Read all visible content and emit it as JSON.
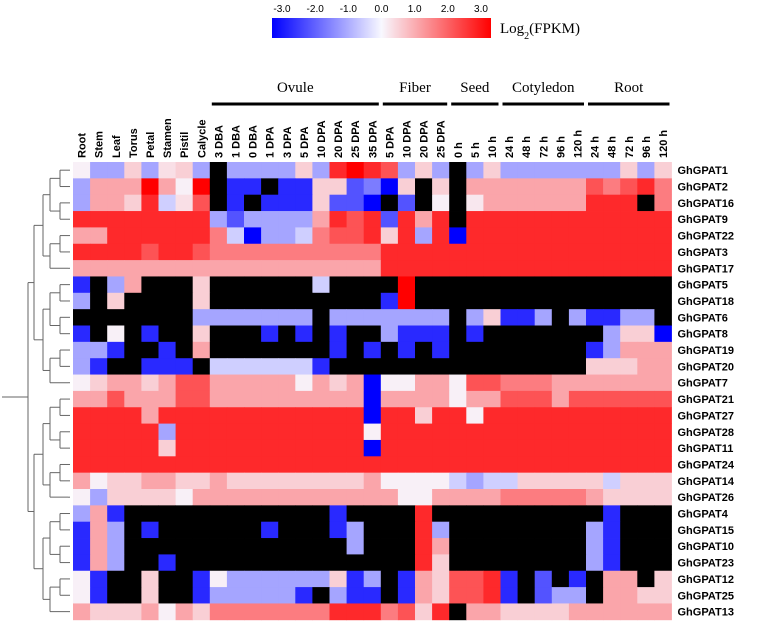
{
  "chart_data": {
    "type": "heatmap",
    "legend": {
      "ticks": [
        "-3.0",
        "-2.0",
        "-1.0",
        "0.0",
        "1.0",
        "2.0",
        "3.0"
      ],
      "title_main": "Log",
      "title_sub": "2",
      "title_rest": "(FPKM)",
      "range": [
        -3,
        3
      ]
    },
    "colors": {
      "neg": "#0000ff",
      "zero": "#f8f8ff",
      "pos": "#ff0000",
      "missing": "#000000"
    },
    "groups": [
      {
        "label": "Ovule",
        "start": 9,
        "end": 18
      },
      {
        "label": "Fiber",
        "start": 19,
        "end": 22
      },
      {
        "label": "Seed",
        "start": 23,
        "end": 25
      },
      {
        "label": "Cotyledon",
        "start": 26,
        "end": 30
      },
      {
        "label": "Root",
        "start": 31,
        "end": 35
      }
    ],
    "columns": [
      "Root",
      "Stem",
      "Leaf",
      "Torus",
      "Petal",
      "Stamen",
      "Pistil",
      "Calycle",
      "3 DBA",
      "1 DBA",
      "0 DBA",
      "1 DPA",
      "3 DPA",
      "5 DPA",
      "10 DPA",
      "20 DPA",
      "25 DPA",
      "35 DPA",
      "5 DPA",
      "10 DPA",
      "20 DPA",
      "25 DPA",
      "0 h",
      "5 h",
      "10 h",
      "24 h",
      "48 h",
      "72 h",
      "96 h",
      "120 h",
      "24 h",
      "48 h",
      "72 h",
      "96 h",
      "120 h"
    ],
    "rows": [
      "GhGPAT1",
      "GhGPAT2",
      "GhGPAT16",
      "GhGPAT9",
      "GhGPAT22",
      "GhGPAT3",
      "GhGPAT17",
      "GhGPAT5",
      "GhGPAT18",
      "GhGPAT6",
      "GhGPAT8",
      "GhGPAT19",
      "GhGPAT20",
      "GhGPAT7",
      "GhGPAT21",
      "GhGPAT27",
      "GhGPAT28",
      "GhGPAT11",
      "GhGPAT24",
      "GhGPAT14",
      "GhGPAT26",
      "GhGPAT4",
      "GhGPAT15",
      "GhGPAT10",
      "GhGPAT23",
      "GhGPAT12",
      "GhGPAT25",
      "GhGPAT13"
    ],
    "values": [
      [
        0.1,
        -1,
        -1,
        0.5,
        -1,
        0.3,
        0.5,
        -1,
        null,
        -1,
        -1,
        -1,
        -1,
        0.5,
        -1,
        2.5,
        3,
        2.5,
        2,
        -1,
        0.5,
        -1,
        null,
        -1,
        0.5,
        -1,
        -1,
        -1,
        -1,
        -1,
        -1,
        -1,
        0.5,
        -1,
        0.5
      ],
      [
        -1,
        1,
        1,
        1,
        3,
        1,
        0.1,
        3,
        null,
        -2.5,
        -2.5,
        null,
        -2.5,
        -2.5,
        0.5,
        0.5,
        -2,
        -1.5,
        -3,
        0.5,
        null,
        0.5,
        null,
        1,
        1,
        1,
        1,
        1,
        1,
        1,
        2,
        1.5,
        2,
        2.5,
        1.5
      ],
      [
        -1,
        1,
        1,
        0.5,
        2.5,
        -0.5,
        0.3,
        2,
        null,
        -2.5,
        null,
        -2.5,
        -2.5,
        -2.5,
        0.5,
        -2,
        -2,
        -3,
        null,
        -2,
        null,
        0.1,
        null,
        0.2,
        1,
        1,
        1,
        1,
        1,
        1,
        2.5,
        2.5,
        2.5,
        null,
        1.5
      ],
      [
        2.5,
        2.5,
        2.5,
        2.5,
        2.5,
        2.5,
        2.5,
        2.5,
        -1,
        -2,
        -1,
        -1,
        -1,
        -1,
        1,
        2.5,
        2,
        2.5,
        -2,
        2.5,
        1,
        2.5,
        null,
        2.5,
        2.5,
        2.5,
        2.5,
        2.5,
        2.5,
        2.5,
        2.5,
        2.5,
        2.5,
        2.5,
        2.5
      ],
      [
        1,
        1,
        2.5,
        2.5,
        2.5,
        2.5,
        2.5,
        2.5,
        1.5,
        -0.5,
        -3,
        -1,
        -1,
        -0.5,
        1.5,
        2,
        2,
        2.5,
        0.5,
        2.5,
        -1,
        2.5,
        -3,
        2.5,
        2.5,
        2.5,
        2.5,
        2.5,
        2.5,
        2.5,
        2.5,
        2.5,
        2.5,
        2.5,
        2.5
      ],
      [
        2.5,
        2.5,
        2.5,
        2.5,
        2,
        2.5,
        2.5,
        2,
        1.5,
        1.5,
        1.5,
        1.5,
        1.5,
        1.5,
        1.5,
        1.5,
        1.5,
        1.5,
        2.5,
        2.5,
        2.5,
        2.5,
        2.5,
        2.5,
        2.5,
        2.5,
        2.5,
        2.5,
        2.5,
        2.5,
        2.5,
        2.5,
        2.5,
        2.5,
        2.5
      ],
      [
        1,
        1,
        1,
        1,
        1,
        1,
        1,
        1,
        1,
        1,
        1,
        1,
        1,
        1,
        1,
        1,
        1,
        1,
        2.5,
        2.5,
        2.5,
        2.5,
        2.5,
        2.5,
        2.5,
        2.5,
        2.5,
        2.5,
        2.5,
        2.5,
        2.5,
        2.5,
        2.5,
        2.5,
        2.5
      ],
      [
        -2.5,
        null,
        -1,
        1,
        null,
        null,
        null,
        0.5,
        null,
        null,
        null,
        null,
        null,
        null,
        -0.5,
        null,
        null,
        null,
        null,
        3,
        null,
        null,
        null,
        null,
        null,
        null,
        null,
        null,
        null,
        null,
        null,
        null,
        null,
        null,
        null
      ],
      [
        -1,
        null,
        0.5,
        null,
        null,
        null,
        null,
        0.5,
        null,
        null,
        null,
        null,
        null,
        null,
        null,
        null,
        null,
        null,
        -2.5,
        3,
        null,
        null,
        null,
        null,
        null,
        null,
        null,
        null,
        null,
        null,
        null,
        null,
        null,
        null,
        null
      ],
      [
        null,
        null,
        null,
        null,
        null,
        null,
        null,
        -1,
        -1,
        -1,
        -1,
        -1,
        -1,
        -1,
        null,
        -1,
        -1,
        -1,
        -1,
        -1,
        -1,
        -1,
        null,
        -1,
        0.5,
        -2.5,
        -2.5,
        -1,
        null,
        -1,
        -2.5,
        -2.5,
        -1,
        -1,
        null
      ],
      [
        -2.5,
        null,
        0.1,
        null,
        -2.5,
        null,
        null,
        0.5,
        null,
        null,
        null,
        -2.5,
        null,
        -2.5,
        null,
        -2.5,
        null,
        null,
        -1,
        -2.5,
        -2.5,
        -2.5,
        null,
        -2.5,
        null,
        null,
        null,
        null,
        null,
        null,
        null,
        -1,
        0.5,
        0.5,
        -3
      ],
      [
        -1,
        -1,
        -2.5,
        null,
        null,
        -2.5,
        null,
        1,
        null,
        null,
        null,
        null,
        null,
        null,
        null,
        -2.5,
        null,
        -2.5,
        null,
        -2.5,
        null,
        -2.5,
        null,
        null,
        null,
        null,
        null,
        null,
        null,
        null,
        -2.5,
        -1,
        1,
        1,
        1
      ],
      [
        -1,
        -2.5,
        null,
        null,
        -2.5,
        -2.5,
        -2.5,
        null,
        -0.5,
        -0.5,
        -0.5,
        -0.5,
        -0.5,
        -0.5,
        -2.5,
        null,
        null,
        null,
        null,
        null,
        null,
        null,
        null,
        null,
        null,
        null,
        null,
        null,
        null,
        null,
        0.5,
        0.5,
        0.5,
        1,
        1
      ],
      [
        0.1,
        0.5,
        1,
        1,
        0.5,
        1,
        2,
        2,
        1,
        1,
        1,
        1,
        1,
        0.1,
        1,
        0.5,
        1,
        -3,
        0.1,
        0.1,
        1,
        1,
        0.1,
        2,
        2,
        1.5,
        1.5,
        1.5,
        1,
        1,
        1,
        1,
        1,
        1,
        1
      ],
      [
        1,
        1,
        2,
        1,
        1,
        1,
        2,
        2,
        1,
        1,
        1,
        1,
        1,
        1,
        1,
        1,
        1,
        -3,
        1,
        1,
        1,
        1,
        0.1,
        1,
        1,
        2,
        2,
        2,
        1,
        2,
        2,
        2,
        2,
        2,
        2
      ],
      [
        2.5,
        2.5,
        2.5,
        2.5,
        1,
        2.5,
        2.5,
        2.5,
        2.5,
        2.5,
        2.5,
        2.5,
        2.5,
        2.5,
        2.5,
        2.5,
        2.5,
        -3,
        2.5,
        2.5,
        0.5,
        2.5,
        2.5,
        0.1,
        2.5,
        2.5,
        2.5,
        2.5,
        2.5,
        2.5,
        2.5,
        2.5,
        2.5,
        2.5,
        2.5
      ],
      [
        2.5,
        2.5,
        2.5,
        2.5,
        2.5,
        -1,
        2.5,
        2.5,
        2.5,
        2.5,
        2.5,
        2.5,
        2.5,
        2.5,
        2.5,
        2.5,
        2.5,
        0.1,
        2.5,
        2.5,
        2.5,
        2.5,
        2.5,
        2.5,
        2.5,
        2.5,
        2.5,
        2.5,
        2.5,
        2.5,
        2.5,
        2.5,
        2.5,
        2.5,
        2.5
      ],
      [
        2.5,
        2.5,
        2.5,
        2.5,
        2.5,
        0.5,
        2.5,
        2.5,
        2.5,
        2.5,
        2.5,
        2.5,
        2.5,
        2.5,
        2.5,
        2.5,
        2.5,
        -3,
        2.5,
        2.5,
        2.5,
        2.5,
        2.5,
        2.5,
        2.5,
        2.5,
        2.5,
        2.5,
        2.5,
        2.5,
        2.5,
        2.5,
        2.5,
        2.5,
        2.5
      ],
      [
        2.5,
        2.5,
        2.5,
        2.5,
        2.5,
        2.5,
        2.5,
        2.5,
        2.5,
        2.5,
        2.5,
        2.5,
        2.5,
        2.5,
        2.5,
        2.5,
        2.5,
        2.5,
        2.5,
        2.5,
        2.5,
        2.5,
        2.5,
        2.5,
        2.5,
        2.5,
        2.5,
        2.5,
        2.5,
        2.5,
        2.5,
        2.5,
        2.5,
        2.5,
        2.5
      ],
      [
        1,
        0.1,
        0.5,
        0.5,
        1,
        1,
        0.5,
        0.5,
        1,
        0.5,
        0.5,
        0.5,
        0.5,
        0.5,
        0.5,
        0.5,
        0.5,
        1,
        0.1,
        0.1,
        0.1,
        0.1,
        -0.5,
        -1,
        -0.5,
        -0.5,
        0.5,
        0.5,
        0.5,
        0.5,
        0.5,
        -0.5,
        0.5,
        0.5,
        0.5
      ],
      [
        0.1,
        -1,
        0.5,
        0.5,
        0.5,
        0.5,
        0.1,
        1,
        1,
        1,
        1,
        1,
        1,
        1,
        1,
        1,
        1,
        1,
        1,
        0.1,
        0.1,
        1,
        1,
        1,
        1,
        1.5,
        1.5,
        1.5,
        1.5,
        1.5,
        1,
        0.5,
        0.5,
        0.5,
        0.5
      ],
      [
        -1,
        1,
        -2.5,
        null,
        null,
        null,
        null,
        null,
        null,
        null,
        null,
        null,
        null,
        null,
        null,
        -2.5,
        null,
        null,
        null,
        null,
        2.5,
        null,
        null,
        null,
        null,
        null,
        null,
        null,
        null,
        null,
        null,
        -2.5,
        null,
        null,
        null
      ],
      [
        -2.5,
        1,
        -1,
        null,
        -2.5,
        null,
        null,
        null,
        null,
        null,
        null,
        -2.5,
        null,
        null,
        null,
        -2.5,
        -1,
        null,
        null,
        null,
        2.5,
        -1,
        null,
        null,
        null,
        null,
        null,
        null,
        null,
        null,
        -1,
        -2.5,
        null,
        null,
        null
      ],
      [
        -2.5,
        1,
        -1,
        null,
        null,
        null,
        null,
        null,
        null,
        null,
        null,
        null,
        null,
        null,
        null,
        null,
        -1,
        null,
        null,
        null,
        2.5,
        1,
        null,
        null,
        null,
        null,
        null,
        null,
        null,
        null,
        -1,
        -2.5,
        null,
        null,
        null
      ],
      [
        -2.5,
        1,
        -1,
        null,
        null,
        -2.5,
        null,
        null,
        null,
        null,
        null,
        null,
        null,
        null,
        null,
        null,
        null,
        null,
        null,
        null,
        2.5,
        0.5,
        null,
        null,
        null,
        null,
        null,
        null,
        null,
        null,
        -1,
        -2.5,
        null,
        null,
        null
      ],
      [
        0.1,
        -2.5,
        null,
        null,
        0.5,
        null,
        null,
        -2.5,
        0.1,
        -1,
        -1,
        -1,
        -1,
        -1,
        -1,
        0.5,
        -2.5,
        -1,
        null,
        -2.5,
        1,
        0.5,
        2,
        2,
        2.5,
        -2.5,
        null,
        -2,
        null,
        -2.5,
        null,
        1,
        1,
        null,
        0.5
      ],
      [
        0.1,
        -2.5,
        null,
        null,
        0.5,
        null,
        null,
        -2.5,
        -1,
        -1,
        -1,
        -1,
        -1,
        -2.5,
        null,
        -1,
        -2.5,
        -2.5,
        null,
        -2.5,
        1,
        0.5,
        2,
        2,
        2.5,
        -2.5,
        null,
        -2,
        -1,
        -1,
        null,
        1,
        1,
        0.5,
        0.5
      ],
      [
        1,
        0.5,
        0.5,
        0.5,
        1,
        0.1,
        1,
        0.5,
        1.5,
        1.5,
        1.5,
        1.5,
        1.5,
        1.5,
        1.5,
        2.5,
        2.5,
        2.5,
        1.5,
        2,
        0.5,
        2.5,
        null,
        1,
        1,
        0.5,
        0.5,
        0.5,
        0.5,
        1,
        1,
        1,
        1,
        1,
        1
      ]
    ]
  }
}
